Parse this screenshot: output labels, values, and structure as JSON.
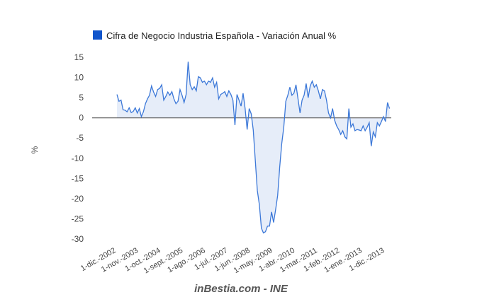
{
  "chart_data": {
    "type": "area",
    "title": "",
    "legend": {
      "label": "Cifra de Negocio Industria Española - Variación Anual %",
      "position": "top"
    },
    "ylabel": "%",
    "xlabel": "",
    "footer": "inBestia.com - INE",
    "ylim": [
      -30,
      15
    ],
    "yticks": [
      15,
      10,
      5,
      0,
      -5,
      -10,
      -15,
      -20,
      -25,
      -30
    ],
    "x_start": "1-dic.-2002",
    "x_frequency": "monthly",
    "x_tick_step_months": 11,
    "x_tick_labels": [
      "1-dic.-2002",
      "1-nov.-2003",
      "1-oct.-2004",
      "1-sept.-2005",
      "1-ago.-2006",
      "1-jul.-2007",
      "1-jun.-2008",
      "1-may.-2009",
      "1-abr.-2010",
      "1-mar.-2011",
      "1-feb.-2012",
      "1-ene.-2013",
      "1-dic.-2013"
    ],
    "series": [
      {
        "name": "Cifra de Negocio Industria Española - Variación Anual %",
        "color": "#3c78d8",
        "fill": "#e6edf9",
        "values": [
          5.8,
          4.1,
          4.4,
          2.0,
          1.9,
          1.5,
          2.5,
          1.3,
          1.6,
          2.5,
          1.2,
          2.3,
          0.3,
          1.5,
          3.5,
          4.7,
          5.6,
          7.9,
          6.4,
          5.3,
          7.0,
          7.3,
          8.2,
          4.4,
          5.3,
          6.4,
          5.6,
          6.5,
          4.7,
          3.5,
          4.1,
          7.0,
          5.6,
          3.8,
          5.8,
          13.9,
          8.2,
          7.0,
          7.7,
          6.7,
          10.2,
          9.9,
          8.8,
          9.1,
          8.2,
          9.1,
          8.8,
          9.9,
          7.6,
          8.8,
          4.7,
          5.8,
          6.1,
          6.5,
          5.3,
          6.7,
          5.8,
          4.4,
          -1.8,
          5.8,
          4.4,
          2.9,
          6.1,
          2.3,
          -2.9,
          2.3,
          1.0,
          -3.0,
          -10.5,
          -18.0,
          -21.5,
          -27.3,
          -28.5,
          -28.2,
          -26.8,
          -26.8,
          -23.3,
          -25.9,
          -22.7,
          -19.2,
          -12.2,
          -6.4,
          -2.3,
          4.1,
          5.6,
          7.6,
          5.6,
          6.1,
          8.2,
          4.7,
          1.2,
          4.4,
          5.6,
          8.5,
          5.0,
          7.9,
          9.1,
          7.6,
          8.2,
          6.7,
          4.7,
          7.0,
          6.7,
          4.4,
          1.2,
          0.0,
          2.3,
          -0.6,
          -2.0,
          -2.9,
          -4.1,
          -3.2,
          -4.7,
          -5.2,
          2.3,
          -2.3,
          -1.5,
          -3.2,
          -2.9,
          -3.0,
          -3.2,
          -2.0,
          -3.2,
          -2.3,
          -1.2,
          -7.0,
          -3.5,
          -4.7,
          -1.2,
          -2.0,
          -0.9,
          0.3,
          -0.9,
          3.8,
          2.3
        ]
      }
    ],
    "grid": false,
    "legend_color": "#1155cc",
    "zero_line_color": "#555555"
  }
}
